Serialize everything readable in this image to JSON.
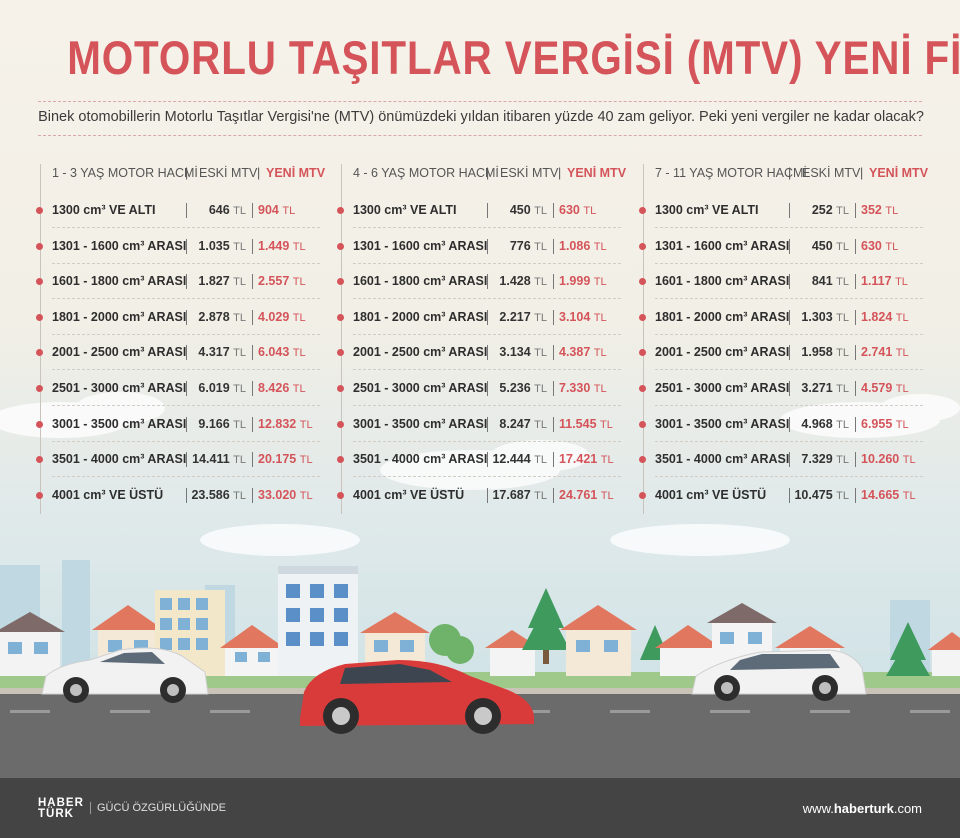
{
  "title": "MOTORLU TAŞITLAR VERGİSİ (MTV) YENİ FİYATLARI",
  "subtitle": "Binek otomobillerin Motorlu Taşıtlar Vergisi'ne (MTV) önümüzdeki yıldan itibaren yüzde 40 zam geliyor. Peki yeni vergiler ne kadar olacak?",
  "column_header_old": "ESKİ MTV",
  "column_header_new": "YENİ MTV",
  "currency": "TL",
  "chart_data": [
    {
      "type": "table",
      "title": "1 - 3 YAŞ MOTOR HACMİ",
      "columns": [
        "ESKİ MTV",
        "YENİ MTV"
      ],
      "rows": [
        {
          "label": "1300 cm³ VE ALTI",
          "old": "646",
          "new": "904"
        },
        {
          "label": "1301 - 1600 cm³ ARASI",
          "old": "1.035",
          "new": "1.449"
        },
        {
          "label": "1601 - 1800 cm³ ARASI",
          "old": "1.827",
          "new": "2.557"
        },
        {
          "label": "1801 - 2000 cm³ ARASI",
          "old": "2.878",
          "new": "4.029"
        },
        {
          "label": "2001 - 2500 cm³ ARASI",
          "old": "4.317",
          "new": "6.043"
        },
        {
          "label": "2501 - 3000 cm³ ARASI",
          "old": "6.019",
          "new": "8.426"
        },
        {
          "label": "3001 - 3500 cm³ ARASI",
          "old": "9.166",
          "new": "12.832"
        },
        {
          "label": "3501 - 4000 cm³ ARASI",
          "old": "14.411",
          "new": "20.175"
        },
        {
          "label": "4001 cm³ VE ÜSTÜ",
          "old": "23.586",
          "new": "33.020"
        }
      ]
    },
    {
      "type": "table",
      "title": "4 - 6 YAŞ MOTOR HACMİ",
      "columns": [
        "ESKİ MTV",
        "YENİ MTV"
      ],
      "rows": [
        {
          "label": "1300 cm³ VE ALTI",
          "old": "450",
          "new": "630"
        },
        {
          "label": "1301 - 1600 cm³ ARASI",
          "old": "776",
          "new": "1.086"
        },
        {
          "label": "1601 - 1800 cm³ ARASI",
          "old": "1.428",
          "new": "1.999"
        },
        {
          "label": "1801 - 2000 cm³ ARASI",
          "old": "2.217",
          "new": "3.104"
        },
        {
          "label": "2001 - 2500 cm³ ARASI",
          "old": "3.134",
          "new": "4.387"
        },
        {
          "label": "2501 - 3000 cm³ ARASI",
          "old": "5.236",
          "new": "7.330"
        },
        {
          "label": "3001 - 3500 cm³ ARASI",
          "old": "8.247",
          "new": "11.545"
        },
        {
          "label": "3501 - 4000 cm³ ARASI",
          "old": "12.444",
          "new": "17.421"
        },
        {
          "label": "4001 cm³ VE ÜSTÜ",
          "old": "17.687",
          "new": "24.761"
        }
      ]
    },
    {
      "type": "table",
      "title": "7 - 11 YAŞ MOTOR HACMİ",
      "columns": [
        "ESKİ MTV",
        "YENİ MTV"
      ],
      "rows": [
        {
          "label": "1300 cm³ VE ALTI",
          "old": "252",
          "new": "352"
        },
        {
          "label": "1301 - 1600 cm³ ARASI",
          "old": "450",
          "new": "630"
        },
        {
          "label": "1601 - 1800 cm³ ARASI",
          "old": "841",
          "new": "1.117"
        },
        {
          "label": "1801 - 2000 cm³ ARASI",
          "old": "1.303",
          "new": "1.824"
        },
        {
          "label": "2001 - 2500 cm³ ARASI",
          "old": "1.958",
          "new": "2.741"
        },
        {
          "label": "2501 - 3000 cm³ ARASI",
          "old": "3.271",
          "new": "4.579"
        },
        {
          "label": "3001 - 3500 cm³ ARASI",
          "old": "4.968",
          "new": "6.955"
        },
        {
          "label": "3501 - 4000 cm³ ARASI",
          "old": "7.329",
          "new": "10.260"
        },
        {
          "label": "4001 cm³ VE ÜSTÜ",
          "old": "10.475",
          "new": "14.665"
        }
      ]
    }
  ],
  "footer": {
    "logo_line1": "HABER",
    "logo_line2": "TÜRK",
    "slogan": "GÜCÜ ÖZGÜRLÜĞÜNDE",
    "url_prefix": "www.",
    "url_bold": "haberturk",
    "url_suffix": ".com"
  },
  "colors": {
    "accent": "#d4545a",
    "background": "#f6f2ea",
    "road": "#6b6b6b",
    "red_car": "#d93b3b",
    "white_car": "#f2f2f2",
    "tree": "#3f9a5e",
    "footer": "#444444"
  },
  "illustration": {
    "scene": "street with houses, trees and cars",
    "icons": [
      "white-sedan-icon",
      "red-hatchback-icon",
      "white-station-wagon-icon",
      "tree-icon",
      "house-icon",
      "building-icon"
    ]
  }
}
